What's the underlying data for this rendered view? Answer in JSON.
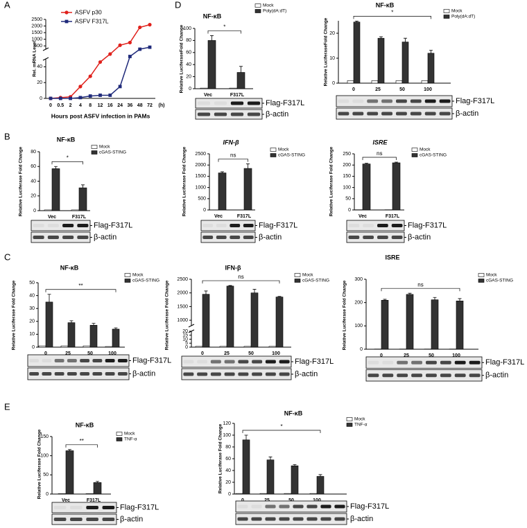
{
  "chart_data": [
    {
      "type": "line",
      "panel": "A",
      "ylabel": "Rel. mRNA Level",
      "xlabel": "Hours post ASFV infection in PAMs",
      "x_unit": "(h)",
      "categories": [
        "0",
        "0.5",
        "2",
        "4",
        "8",
        "12",
        "16",
        "24",
        "36",
        "48",
        "72"
      ],
      "ylim_lower": [
        0,
        50
      ],
      "ylim_upper": [
        250,
        2500
      ],
      "yticks": [
        0,
        20,
        40,
        500,
        1000,
        1500,
        2000,
        2500
      ],
      "series": [
        {
          "name": "ASFV p30",
          "color": "#e0201b",
          "values": [
            0,
            1,
            2,
            15,
            28,
            46,
            150,
            550,
            750,
            1900,
            2100
          ]
        },
        {
          "name": "ASFV F317L",
          "color": "#1f2a7a",
          "values": [
            0,
            0,
            0,
            1,
            3,
            4,
            4,
            15,
            100,
            250,
            400
          ]
        }
      ]
    },
    {
      "type": "bar",
      "panel": "D",
      "title": "NF-κB",
      "ylabel": "Relative LuciferaseFold Change",
      "categories": [
        "Vec",
        "F317L"
      ],
      "ylim": [
        0,
        100
      ],
      "yticks": [
        0,
        20,
        40,
        60,
        80,
        100
      ],
      "significance": "*",
      "series": [
        {
          "name": "Mock",
          "color": "#ffffff",
          "values": [
            1,
            1
          ]
        },
        {
          "name": "Poly(dA:dT)",
          "color": "#333333",
          "values": [
            80,
            27
          ],
          "errors": [
            8,
            10
          ]
        }
      ],
      "blot_labels": [
        "Flag-F317L",
        "β-actin"
      ]
    },
    {
      "type": "bar",
      "title": "NF-κB",
      "ylabel": "Relative LuciferaseFold Change",
      "categories": [
        "0",
        "25",
        "50",
        "100"
      ],
      "ylim": [
        0,
        25
      ],
      "yticks": [
        0,
        10,
        20
      ],
      "significance": "*",
      "series": [
        {
          "name": "Mock",
          "color": "#ffffff",
          "values": [
            1,
            1,
            1,
            1
          ]
        },
        {
          "name": "Poly(dA:dT)",
          "color": "#333333",
          "values": [
            24.5,
            18,
            16.5,
            12
          ],
          "errors": [
            0.4,
            0.6,
            1.5,
            1.2
          ]
        }
      ],
      "blot_labels": [
        "Flag-F317L",
        "β-actin"
      ]
    },
    {
      "type": "bar",
      "panel": "B",
      "title": "NF-κB",
      "ylabel": "Relative Luciferase Fold Change",
      "categories": [
        "Vec",
        "F317L"
      ],
      "ylim": [
        0,
        80
      ],
      "yticks": [
        0,
        20,
        40,
        60,
        80
      ],
      "significance": "*",
      "series": [
        {
          "name": "Mock",
          "color": "#ffffff",
          "values": [
            1,
            1
          ]
        },
        {
          "name": "cGAS-STING",
          "color": "#333333",
          "values": [
            57,
            31
          ],
          "errors": [
            3,
            4
          ]
        }
      ],
      "blot_labels": [
        "Flag-F317L",
        "β-actin"
      ]
    },
    {
      "type": "bar",
      "title": "IFN-β",
      "ylabel": "Relative Luciferase Fold Change",
      "categories": [
        "Vec",
        "F317L"
      ],
      "ylim": [
        0,
        2500
      ],
      "yticks": [
        0,
        500,
        1000,
        1500,
        2000,
        2500
      ],
      "significance": "ns",
      "series": [
        {
          "name": "Mock",
          "color": "#ffffff",
          "values": [
            5,
            5
          ]
        },
        {
          "name": "cGAS-STING",
          "color": "#333333",
          "values": [
            1650,
            1850
          ],
          "errors": [
            50,
            200
          ]
        }
      ],
      "blot_labels": [
        "Flag-F317L",
        "β-actin"
      ]
    },
    {
      "type": "bar",
      "title": "ISRE",
      "ylabel": "Relative Luciferase Fold Change",
      "categories": [
        "Vec",
        "F317L"
      ],
      "ylim": [
        0,
        250
      ],
      "yticks": [
        0,
        50,
        100,
        150,
        200,
        250
      ],
      "significance": "ns",
      "series": [
        {
          "name": "Mock",
          "color": "#ffffff",
          "values": [
            1,
            1
          ]
        },
        {
          "name": "cGAS-STING",
          "color": "#333333",
          "values": [
            205,
            210
          ],
          "errors": [
            3,
            3
          ]
        }
      ],
      "blot_labels": [
        "Flag-F317L",
        "β-actin"
      ]
    },
    {
      "type": "bar",
      "panel": "C",
      "title": "NF-κB",
      "ylabel": "Relative Luciferase Fold Change",
      "categories": [
        "0",
        "25",
        "50",
        "100"
      ],
      "ylim": [
        0,
        50
      ],
      "yticks": [
        0,
        10,
        20,
        30,
        40,
        50
      ],
      "significance": "**",
      "series": [
        {
          "name": "Mock",
          "color": "#ffffff",
          "values": [
            1,
            1,
            1,
            0.5
          ]
        },
        {
          "name": "cGAS-STING",
          "color": "#333333",
          "values": [
            35,
            19,
            17,
            14
          ],
          "errors": [
            6,
            1.5,
            1.5,
            1
          ]
        }
      ],
      "blot_labels": [
        "Flag-F317L",
        "β-actin"
      ]
    },
    {
      "type": "bar",
      "title": "IFN-β",
      "ylabel": "Relative Luciferase Fold Change",
      "categories": [
        "0",
        "25",
        "50",
        "100"
      ],
      "ylim_lower": [
        0,
        20
      ],
      "ylim_upper": [
        800,
        2500
      ],
      "yticks": [
        0,
        5,
        10,
        15,
        20,
        1000,
        1500,
        2000,
        2500
      ],
      "significance": "ns",
      "series": [
        {
          "name": "Mock",
          "color": "#ffffff",
          "values": [
            1,
            1,
            1,
            1
          ]
        },
        {
          "name": "cGAS-STING",
          "color": "#333333",
          "values": [
            1950,
            2250,
            2000,
            1850
          ],
          "errors": [
            120,
            20,
            130,
            20
          ]
        }
      ],
      "blot_labels": [
        "Flag-F317L",
        "β-actin"
      ]
    },
    {
      "type": "bar",
      "title": "ISRE",
      "ylabel": "Relative Luciferase Fold Change",
      "categories": [
        "0",
        "25",
        "50",
        "100"
      ],
      "ylim": [
        0,
        300
      ],
      "yticks": [
        0,
        100,
        200,
        300
      ],
      "significance": "ns",
      "series": [
        {
          "name": "Mock",
          "color": "#ffffff",
          "values": [
            1,
            1,
            1,
            1
          ]
        },
        {
          "name": "cGAS-STING",
          "color": "#333333",
          "values": [
            210,
            235,
            212,
            207
          ],
          "errors": [
            4,
            5,
            10,
            10
          ]
        }
      ],
      "blot_labels": [
        "Flag-F317L",
        "β-actin"
      ]
    },
    {
      "type": "bar",
      "panel": "E",
      "title": "NF-κB",
      "ylabel": "Relative Luciferase Fold Change",
      "categories": [
        "Vec",
        "F317L"
      ],
      "ylim": [
        0,
        150
      ],
      "yticks": [
        0,
        50,
        100,
        150
      ],
      "significance": "**",
      "series": [
        {
          "name": "Mock",
          "color": "#ffffff",
          "values": [
            1,
            1
          ]
        },
        {
          "name": "TNF-α",
          "color": "#333333",
          "values": [
            113,
            30
          ],
          "errors": [
            3,
            3
          ]
        }
      ],
      "blot_labels": [
        "Flag-F317L",
        "β-actin"
      ]
    },
    {
      "type": "bar",
      "title": "NF-κB",
      "ylabel": "Relative Luciferase Fold Change",
      "categories": [
        "0",
        "25",
        "50",
        "100"
      ],
      "ylim": [
        0,
        120
      ],
      "yticks": [
        0,
        20,
        40,
        60,
        80,
        100,
        120
      ],
      "significance": "*",
      "series": [
        {
          "name": "Mock",
          "color": "#ffffff",
          "values": [
            1,
            1,
            1,
            1
          ]
        },
        {
          "name": "TNF-α",
          "color": "#333333",
          "values": [
            92,
            58,
            48,
            30
          ],
          "errors": [
            8,
            5,
            2,
            3
          ]
        }
      ],
      "blot_labels": [
        "Flag-F317L",
        "β-actin"
      ]
    }
  ]
}
